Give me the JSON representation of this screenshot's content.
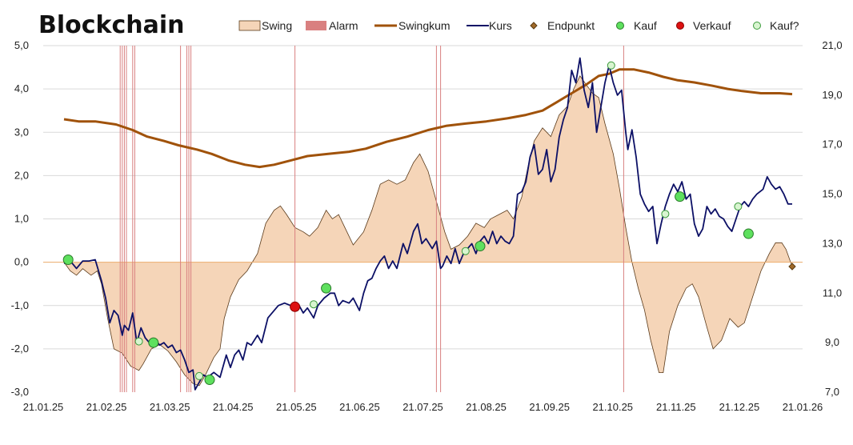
{
  "chart_data": {
    "type": "line",
    "title": "Blockchain",
    "legend_position": "top",
    "legend": [
      "Swing",
      "Alarm",
      "Swingkum",
      "Kurs",
      "Endpunkt",
      "Kauf",
      "Verkauf",
      "Kauf?"
    ],
    "x_ticks": [
      "21.01.25",
      "21.02.25",
      "21.03.25",
      "21.04.25",
      "21.05.25",
      "21.06.25",
      "21.07.25",
      "21.08.25",
      "21.09.25",
      "21.10.25",
      "21.11.25",
      "21.12.25",
      "21.01.26"
    ],
    "y_left_ticks": [
      "5,0",
      "4,0",
      "3,0",
      "2,0",
      "1,0",
      "0,0",
      "-1,0",
      "-2,0",
      "-3,0"
    ],
    "y_right_ticks": [
      "21,0",
      "19,0",
      "17,0",
      "15,0",
      "13,0",
      "11,0",
      "9,0",
      "7,0"
    ],
    "ylim_left": [
      -3,
      5
    ],
    "ylim_right": [
      7,
      21
    ],
    "grid": "horizontal",
    "colors": {
      "swing_fill": "#f5d5b8",
      "swing_stroke": "#5a3a1a",
      "alarm": "#d98080",
      "swingkum": "#a0520a",
      "kurs": "#0c1066",
      "endpunkt": "#a06a2a",
      "kauf": "#5ee05e",
      "verkauf": "#dd1111",
      "kauf_q_fill": "#d8f5d0",
      "zero_line": "#f0b070",
      "grid": "#d9d9d9"
    },
    "alarms": [
      "2025-02-27",
      "2025-02-28",
      "2025-03-01",
      "2025-03-02",
      "2025-03-05",
      "2025-03-06",
      "2025-03-28",
      "2025-03-31",
      "2025-04-01",
      "2025-04-02",
      "2025-05-22",
      "2025-07-29",
      "2025-07-31",
      "2025-10-27"
    ],
    "swing": [
      [
        "2025-01-31",
        0.0
      ],
      [
        "2025-02-03",
        -0.2
      ],
      [
        "2025-02-06",
        -0.3
      ],
      [
        "2025-02-09",
        -0.15
      ],
      [
        "2025-02-13",
        -0.3
      ],
      [
        "2025-02-16",
        -0.2
      ],
      [
        "2025-02-18",
        -0.5
      ],
      [
        "2025-02-21",
        -1.3
      ],
      [
        "2025-02-24",
        -2.0
      ],
      [
        "2025-02-28",
        -2.1
      ],
      [
        "2025-03-04",
        -2.4
      ],
      [
        "2025-03-08",
        -2.5
      ],
      [
        "2025-03-10",
        -2.35
      ],
      [
        "2025-03-14",
        -2.0
      ],
      [
        "2025-03-18",
        -1.9
      ],
      [
        "2025-03-22",
        -2.05
      ],
      [
        "2025-03-26",
        -2.3
      ],
      [
        "2025-03-30",
        -2.6
      ],
      [
        "2025-04-03",
        -2.8
      ],
      [
        "2025-04-06",
        -2.85
      ],
      [
        "2025-04-09",
        -2.6
      ],
      [
        "2025-04-13",
        -2.2
      ],
      [
        "2025-04-16",
        -2.0
      ],
      [
        "2025-04-18",
        -1.3
      ],
      [
        "2025-04-21",
        -0.8
      ],
      [
        "2025-04-25",
        -0.4
      ],
      [
        "2025-04-29",
        -0.2
      ],
      [
        "2025-05-04",
        0.2
      ],
      [
        "2025-05-08",
        0.9
      ],
      [
        "2025-05-12",
        1.2
      ],
      [
        "2025-05-15",
        1.3
      ],
      [
        "2025-05-18",
        1.1
      ],
      [
        "2025-05-22",
        0.8
      ],
      [
        "2025-05-26",
        0.7
      ],
      [
        "2025-05-29",
        0.6
      ],
      [
        "2025-06-02",
        0.8
      ],
      [
        "2025-06-06",
        1.2
      ],
      [
        "2025-06-09",
        1.0
      ],
      [
        "2025-06-12",
        1.1
      ],
      [
        "2025-06-15",
        0.8
      ],
      [
        "2025-06-19",
        0.4
      ],
      [
        "2025-06-24",
        0.7
      ],
      [
        "2025-06-28",
        1.2
      ],
      [
        "2025-07-02",
        1.8
      ],
      [
        "2025-07-06",
        1.9
      ],
      [
        "2025-07-10",
        1.8
      ],
      [
        "2025-07-14",
        1.9
      ],
      [
        "2025-07-18",
        2.3
      ],
      [
        "2025-07-21",
        2.5
      ],
      [
        "2025-07-25",
        2.1
      ],
      [
        "2025-07-29",
        1.4
      ],
      [
        "2025-08-02",
        0.7
      ],
      [
        "2025-08-05",
        0.3
      ],
      [
        "2025-08-09",
        0.4
      ],
      [
        "2025-08-13",
        0.6
      ],
      [
        "2025-08-17",
        0.9
      ],
      [
        "2025-08-21",
        0.8
      ],
      [
        "2025-08-24",
        1.0
      ],
      [
        "2025-08-28",
        1.1
      ],
      [
        "2025-09-01",
        1.2
      ],
      [
        "2025-09-04",
        1.0
      ],
      [
        "2025-09-08",
        1.5
      ],
      [
        "2025-09-11",
        2.2
      ],
      [
        "2025-09-14",
        2.8
      ],
      [
        "2025-09-18",
        3.1
      ],
      [
        "2025-09-22",
        2.9
      ],
      [
        "2025-09-26",
        3.4
      ],
      [
        "2025-09-30",
        3.6
      ],
      [
        "2025-10-03",
        4.0
      ],
      [
        "2025-10-06",
        4.3
      ],
      [
        "2025-10-09",
        4.1
      ],
      [
        "2025-10-12",
        3.9
      ],
      [
        "2025-10-15",
        3.8
      ],
      [
        "2025-10-18",
        3.2
      ],
      [
        "2025-10-22",
        2.5
      ],
      [
        "2025-10-25",
        1.7
      ],
      [
        "2025-10-28",
        0.8
      ],
      [
        "2025-10-31",
        0.0
      ],
      [
        "2025-11-03",
        -0.6
      ],
      [
        "2025-11-06",
        -1.1
      ],
      [
        "2025-11-09",
        -1.8
      ],
      [
        "2025-11-13",
        -2.55
      ],
      [
        "2025-11-15",
        -2.55
      ],
      [
        "2025-11-18",
        -1.6
      ],
      [
        "2025-11-22",
        -1.0
      ],
      [
        "2025-11-26",
        -0.6
      ],
      [
        "2025-11-29",
        -0.5
      ],
      [
        "2025-12-02",
        -0.8
      ],
      [
        "2025-12-06",
        -1.5
      ],
      [
        "2025-12-09",
        -2.0
      ],
      [
        "2025-12-13",
        -1.8
      ],
      [
        "2025-12-17",
        -1.3
      ],
      [
        "2025-12-21",
        -1.5
      ],
      [
        "2025-12-24",
        -1.4
      ],
      [
        "2025-12-28",
        -0.8
      ],
      [
        "2026-01-01",
        -0.2
      ],
      [
        "2026-01-05",
        0.2
      ],
      [
        "2026-01-08",
        0.45
      ],
      [
        "2026-01-11",
        0.45
      ],
      [
        "2026-01-13",
        0.3
      ],
      [
        "2026-01-16",
        -0.1
      ]
    ],
    "swingkum": [
      [
        "2025-01-31",
        3.3
      ],
      [
        "2025-02-07",
        3.25
      ],
      [
        "2025-02-15",
        3.25
      ],
      [
        "2025-02-25",
        3.18
      ],
      [
        "2025-03-05",
        3.05
      ],
      [
        "2025-03-12",
        2.9
      ],
      [
        "2025-03-20",
        2.8
      ],
      [
        "2025-03-27",
        2.7
      ],
      [
        "2025-04-05",
        2.6
      ],
      [
        "2025-04-12",
        2.5
      ],
      [
        "2025-04-20",
        2.35
      ],
      [
        "2025-04-28",
        2.25
      ],
      [
        "2025-05-05",
        2.2
      ],
      [
        "2025-05-12",
        2.25
      ],
      [
        "2025-05-20",
        2.35
      ],
      [
        "2025-05-28",
        2.45
      ],
      [
        "2025-06-07",
        2.5
      ],
      [
        "2025-06-17",
        2.55
      ],
      [
        "2025-06-25",
        2.62
      ],
      [
        "2025-07-05",
        2.78
      ],
      [
        "2025-07-15",
        2.9
      ],
      [
        "2025-07-25",
        3.05
      ],
      [
        "2025-08-03",
        3.15
      ],
      [
        "2025-08-12",
        3.2
      ],
      [
        "2025-08-22",
        3.25
      ],
      [
        "2025-09-01",
        3.32
      ],
      [
        "2025-09-10",
        3.4
      ],
      [
        "2025-09-18",
        3.5
      ],
      [
        "2025-09-25",
        3.7
      ],
      [
        "2025-10-02",
        3.9
      ],
      [
        "2025-10-09",
        4.1
      ],
      [
        "2025-10-15",
        4.3
      ],
      [
        "2025-10-20",
        4.35
      ],
      [
        "2025-10-25",
        4.45
      ],
      [
        "2025-11-01",
        4.45
      ],
      [
        "2025-11-08",
        4.38
      ],
      [
        "2025-11-15",
        4.28
      ],
      [
        "2025-11-22",
        4.2
      ],
      [
        "2025-11-30",
        4.15
      ],
      [
        "2025-12-08",
        4.08
      ],
      [
        "2025-12-16",
        4.0
      ],
      [
        "2025-12-23",
        3.95
      ],
      [
        "2026-01-01",
        3.9
      ],
      [
        "2026-01-10",
        3.9
      ],
      [
        "2026-01-16",
        3.88
      ]
    ],
    "kurs": [
      [
        "2025-01-31",
        12.2
      ],
      [
        "2025-02-03",
        12.3
      ],
      [
        "2025-02-06",
        12.0
      ],
      [
        "2025-02-09",
        12.3
      ],
      [
        "2025-02-12",
        12.3
      ],
      [
        "2025-02-15",
        12.35
      ],
      [
        "2025-02-18",
        11.5
      ],
      [
        "2025-02-20",
        10.8
      ],
      [
        "2025-02-22",
        9.8
      ],
      [
        "2025-02-24",
        10.3
      ],
      [
        "2025-02-26",
        10.1
      ],
      [
        "2025-02-28",
        9.3
      ],
      [
        "2025-03-01",
        9.7
      ],
      [
        "2025-03-03",
        9.5
      ],
      [
        "2025-03-05",
        10.2
      ],
      [
        "2025-03-07",
        9.0
      ],
      [
        "2025-03-09",
        9.6
      ],
      [
        "2025-03-11",
        9.2
      ],
      [
        "2025-03-13",
        9.0
      ],
      [
        "2025-03-16",
        9.1
      ],
      [
        "2025-03-18",
        8.9
      ],
      [
        "2025-03-20",
        9.0
      ],
      [
        "2025-03-22",
        8.8
      ],
      [
        "2025-03-24",
        8.9
      ],
      [
        "2025-03-26",
        8.6
      ],
      [
        "2025-03-28",
        8.7
      ],
      [
        "2025-03-30",
        8.3
      ],
      [
        "2025-04-01",
        7.8
      ],
      [
        "2025-04-03",
        7.9
      ],
      [
        "2025-04-04",
        7.1
      ],
      [
        "2025-04-06",
        7.4
      ],
      [
        "2025-04-08",
        7.7
      ],
      [
        "2025-04-10",
        7.6
      ],
      [
        "2025-04-13",
        7.8
      ],
      [
        "2025-04-16",
        7.6
      ],
      [
        "2025-04-19",
        8.5
      ],
      [
        "2025-04-21",
        8.0
      ],
      [
        "2025-04-23",
        8.5
      ],
      [
        "2025-04-25",
        8.7
      ],
      [
        "2025-04-27",
        8.3
      ],
      [
        "2025-04-29",
        9.0
      ],
      [
        "2025-05-01",
        8.9
      ],
      [
        "2025-05-04",
        9.3
      ],
      [
        "2025-05-06",
        9.0
      ],
      [
        "2025-05-09",
        10.0
      ],
      [
        "2025-05-12",
        10.3
      ],
      [
        "2025-05-14",
        10.5
      ],
      [
        "2025-05-17",
        10.6
      ],
      [
        "2025-05-20",
        10.5
      ],
      [
        "2025-05-22",
        10.45
      ],
      [
        "2025-05-24",
        10.5
      ],
      [
        "2025-05-26",
        10.2
      ],
      [
        "2025-05-28",
        10.4
      ],
      [
        "2025-05-31",
        10.0
      ],
      [
        "2025-06-02",
        10.5
      ],
      [
        "2025-06-05",
        10.8
      ],
      [
        "2025-06-08",
        11.0
      ],
      [
        "2025-06-10",
        11.0
      ],
      [
        "2025-06-12",
        10.5
      ],
      [
        "2025-06-14",
        10.7
      ],
      [
        "2025-06-17",
        10.6
      ],
      [
        "2025-06-19",
        10.8
      ],
      [
        "2025-06-22",
        10.3
      ],
      [
        "2025-06-24",
        11.0
      ],
      [
        "2025-06-26",
        11.5
      ],
      [
        "2025-06-28",
        11.6
      ],
      [
        "2025-06-30",
        12.0
      ],
      [
        "2025-07-02",
        12.3
      ],
      [
        "2025-07-04",
        12.5
      ],
      [
        "2025-07-06",
        12.0
      ],
      [
        "2025-07-08",
        12.3
      ],
      [
        "2025-07-10",
        12.0
      ],
      [
        "2025-07-13",
        13.0
      ],
      [
        "2025-07-15",
        12.6
      ],
      [
        "2025-07-18",
        13.5
      ],
      [
        "2025-07-20",
        13.8
      ],
      [
        "2025-07-22",
        13.0
      ],
      [
        "2025-07-24",
        13.2
      ],
      [
        "2025-07-27",
        12.8
      ],
      [
        "2025-07-29",
        13.1
      ],
      [
        "2025-07-31",
        12.0
      ],
      [
        "2025-08-01",
        12.1
      ],
      [
        "2025-08-03",
        12.5
      ],
      [
        "2025-08-05",
        12.2
      ],
      [
        "2025-08-07",
        12.8
      ],
      [
        "2025-08-09",
        12.2
      ],
      [
        "2025-08-11",
        12.6
      ],
      [
        "2025-08-13",
        12.8
      ],
      [
        "2025-08-15",
        13.0
      ],
      [
        "2025-08-17",
        12.6
      ],
      [
        "2025-08-19",
        13.1
      ],
      [
        "2025-08-21",
        13.3
      ],
      [
        "2025-08-23",
        13.0
      ],
      [
        "2025-08-25",
        13.5
      ],
      [
        "2025-08-27",
        13.0
      ],
      [
        "2025-08-29",
        13.3
      ],
      [
        "2025-08-31",
        13.1
      ],
      [
        "2025-09-02",
        13.0
      ],
      [
        "2025-09-04",
        13.3
      ],
      [
        "2025-09-06",
        15.0
      ],
      [
        "2025-09-08",
        15.1
      ],
      [
        "2025-09-10",
        15.5
      ],
      [
        "2025-09-12",
        16.5
      ],
      [
        "2025-09-14",
        17.0
      ],
      [
        "2025-09-16",
        15.8
      ],
      [
        "2025-09-18",
        16.0
      ],
      [
        "2025-09-20",
        16.8
      ],
      [
        "2025-09-22",
        15.5
      ],
      [
        "2025-09-24",
        16.0
      ],
      [
        "2025-09-26",
        17.3
      ],
      [
        "2025-09-28",
        18.0
      ],
      [
        "2025-09-30",
        18.5
      ],
      [
        "2025-10-02",
        20.0
      ],
      [
        "2025-10-04",
        19.5
      ],
      [
        "2025-10-06",
        20.5
      ],
      [
        "2025-10-08",
        19.2
      ],
      [
        "2025-10-10",
        18.5
      ],
      [
        "2025-10-12",
        19.5
      ],
      [
        "2025-10-14",
        17.5
      ],
      [
        "2025-10-16",
        18.5
      ],
      [
        "2025-10-18",
        19.5
      ],
      [
        "2025-10-20",
        20.2
      ],
      [
        "2025-10-22",
        19.5
      ],
      [
        "2025-10-24",
        19.0
      ],
      [
        "2025-10-26",
        19.2
      ],
      [
        "2025-10-28",
        17.5
      ],
      [
        "2025-10-29",
        16.8
      ],
      [
        "2025-10-31",
        17.6
      ],
      [
        "2025-11-02",
        16.5
      ],
      [
        "2025-11-04",
        15.0
      ],
      [
        "2025-11-06",
        14.6
      ],
      [
        "2025-11-08",
        14.3
      ],
      [
        "2025-11-10",
        14.5
      ],
      [
        "2025-11-12",
        13.0
      ],
      [
        "2025-11-14",
        13.8
      ],
      [
        "2025-11-16",
        14.5
      ],
      [
        "2025-11-18",
        15.0
      ],
      [
        "2025-11-20",
        15.4
      ],
      [
        "2025-11-22",
        15.1
      ],
      [
        "2025-11-24",
        15.5
      ],
      [
        "2025-11-26",
        14.8
      ],
      [
        "2025-11-28",
        15.0
      ],
      [
        "2025-11-30",
        13.8
      ],
      [
        "2025-12-02",
        13.3
      ],
      [
        "2025-12-04",
        13.6
      ],
      [
        "2025-12-06",
        14.5
      ],
      [
        "2025-12-08",
        14.2
      ],
      [
        "2025-12-10",
        14.4
      ],
      [
        "2025-12-12",
        14.1
      ],
      [
        "2025-12-14",
        14.0
      ],
      [
        "2025-12-16",
        13.7
      ],
      [
        "2025-12-18",
        13.5
      ],
      [
        "2025-12-20",
        14.0
      ],
      [
        "2025-12-22",
        14.5
      ],
      [
        "2025-12-24",
        14.7
      ],
      [
        "2025-12-26",
        14.5
      ],
      [
        "2025-12-28",
        14.8
      ],
      [
        "2025-12-30",
        15.0
      ],
      [
        "2026-01-02",
        15.2
      ],
      [
        "2026-01-04",
        15.7
      ],
      [
        "2026-01-06",
        15.4
      ],
      [
        "2026-01-08",
        15.2
      ],
      [
        "2026-01-10",
        15.3
      ],
      [
        "2026-01-12",
        15.0
      ],
      [
        "2026-01-14",
        14.6
      ],
      [
        "2026-01-16",
        14.6
      ]
    ],
    "kauf": [
      [
        "2025-02-02",
        12.35
      ],
      [
        "2025-03-15",
        9.0
      ],
      [
        "2025-04-11",
        7.5
      ],
      [
        "2025-06-06",
        11.2
      ],
      [
        "2025-08-19",
        12.9
      ],
      [
        "2025-11-23",
        14.9
      ],
      [
        "2025-12-26",
        13.4
      ]
    ],
    "verkauf": [
      [
        "2025-05-22",
        10.45
      ]
    ],
    "kauf_q": [
      [
        "2025-03-08",
        9.05
      ],
      [
        "2025-04-06",
        7.65
      ],
      [
        "2025-05-31",
        10.55
      ],
      [
        "2025-08-12",
        12.7
      ],
      [
        "2025-10-21",
        20.2
      ],
      [
        "2025-11-16",
        14.2
      ],
      [
        "2025-12-21",
        14.5
      ]
    ],
    "endpunkt": [
      [
        "2026-01-16",
        -0.1
      ]
    ]
  }
}
